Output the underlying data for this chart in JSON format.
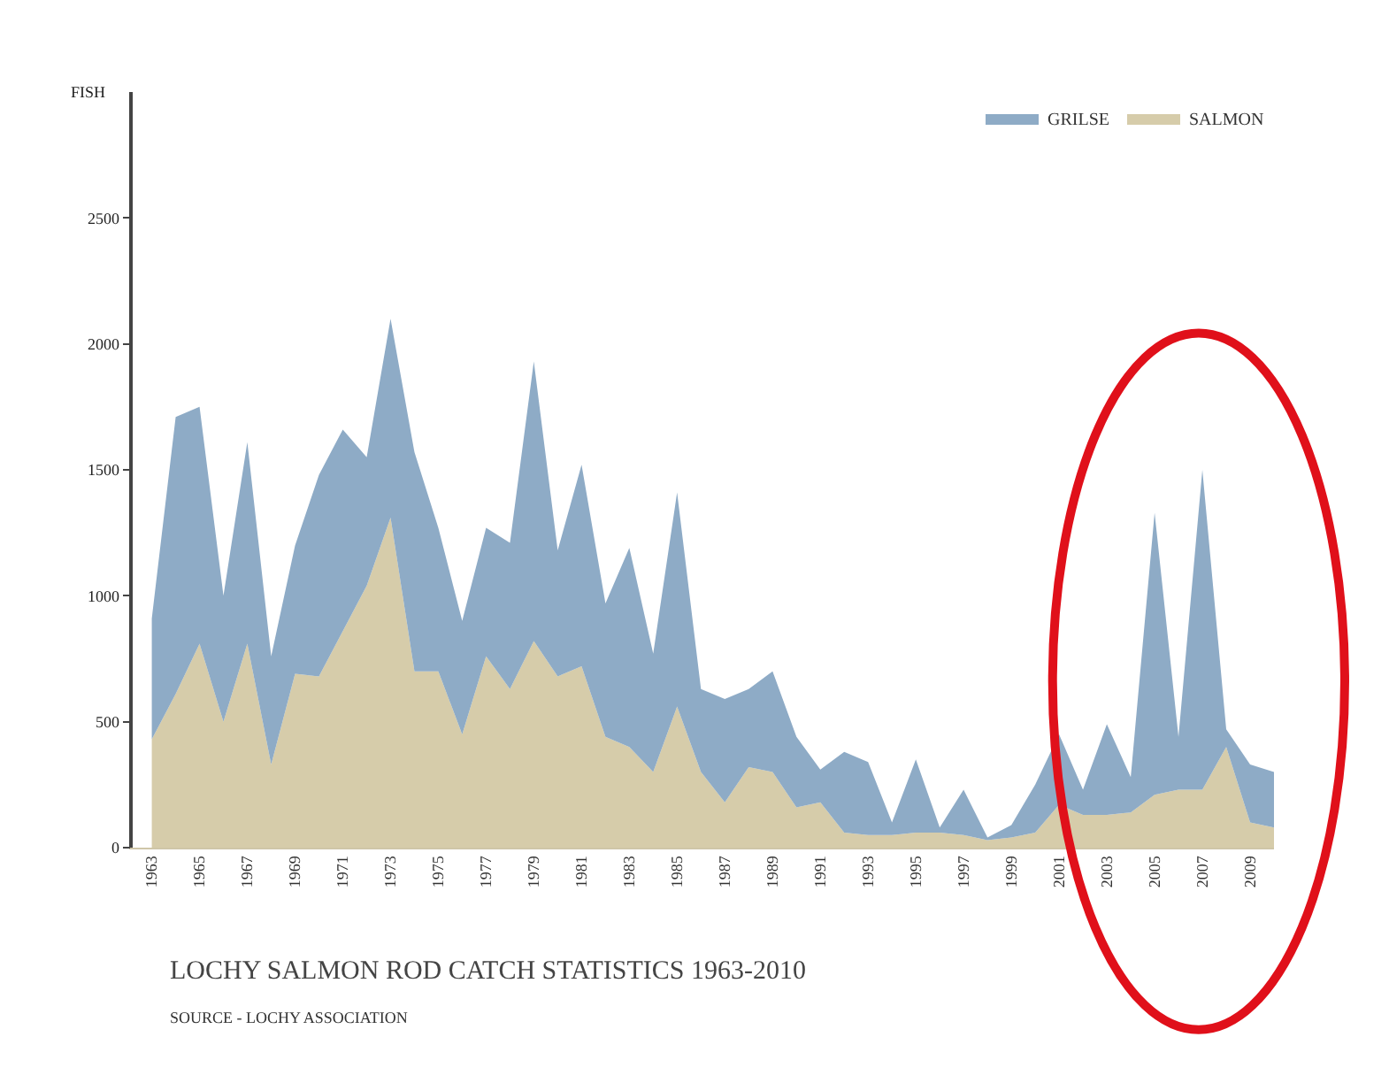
{
  "chart_data": {
    "type": "area",
    "stacked": true,
    "title": "LOCHY SALMON ROD CATCH STATISTICS 1963-2010",
    "subtitle": "SOURCE - LOCHY ASSOCIATION",
    "ylabel": "FISH",
    "x": [
      1963,
      1964,
      1965,
      1966,
      1967,
      1968,
      1969,
      1970,
      1971,
      1972,
      1973,
      1974,
      1975,
      1976,
      1977,
      1978,
      1979,
      1980,
      1981,
      1982,
      1983,
      1984,
      1985,
      1986,
      1987,
      1988,
      1989,
      1990,
      1991,
      1992,
      1993,
      1994,
      1995,
      1996,
      1997,
      1998,
      1999,
      2000,
      2001,
      2002,
      2003,
      2004,
      2005,
      2006,
      2007,
      2008,
      2009,
      2010
    ],
    "series": [
      {
        "name": "SALMON",
        "color": "#d6ccaa",
        "values": [
          430,
          610,
          810,
          500,
          810,
          330,
          690,
          680,
          860,
          1040,
          1310,
          700,
          700,
          450,
          760,
          630,
          820,
          680,
          720,
          440,
          400,
          300,
          560,
          300,
          180,
          320,
          300,
          160,
          180,
          60,
          50,
          50,
          60,
          60,
          50,
          30,
          40,
          60,
          170,
          130,
          130,
          140,
          210,
          230,
          230,
          400,
          100,
          80
        ]
      },
      {
        "name": "GRILSE",
        "color": "#8eabc6",
        "values": [
          480,
          1100,
          940,
          500,
          800,
          430,
          510,
          800,
          800,
          510,
          790,
          870,
          570,
          450,
          510,
          580,
          1110,
          500,
          800,
          530,
          790,
          470,
          850,
          330,
          410,
          310,
          400,
          280,
          130,
          320,
          290,
          50,
          290,
          20,
          180,
          10,
          50,
          190,
          280,
          100,
          360,
          140,
          1120,
          210,
          1270,
          70,
          230,
          220
        ]
      }
    ],
    "xlim": [
      1962.2,
      2010
    ],
    "xticks": [
      1963,
      1965,
      1967,
      1969,
      1971,
      1973,
      1975,
      1977,
      1979,
      1981,
      1983,
      1985,
      1987,
      1989,
      1991,
      1993,
      1995,
      1997,
      1999,
      2001,
      2003,
      2005,
      2007,
      2009
    ],
    "ylim": [
      0,
      3000
    ],
    "yticks": [
      0,
      500,
      1000,
      1500,
      2000,
      2500
    ],
    "legend": "top right"
  }
}
